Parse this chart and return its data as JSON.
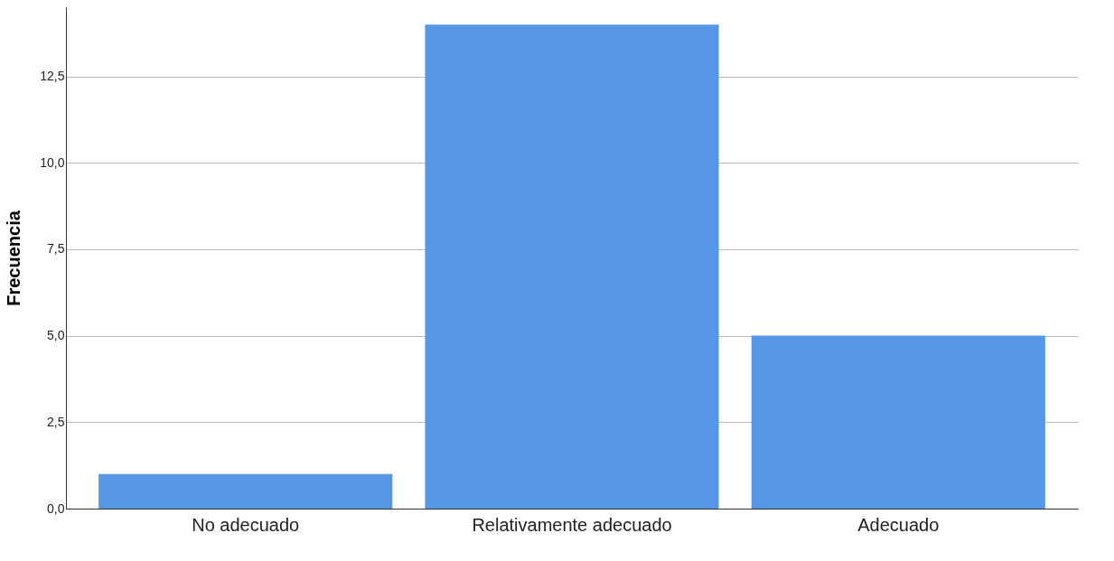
{
  "chart_data": {
    "type": "bar",
    "ylabel": "Frecuencia",
    "categories": [
      "No adecuado",
      "Relativamente adecuado",
      "Adecuado"
    ],
    "values": [
      1,
      14,
      5
    ],
    "color": "#5597e5",
    "ylim": [
      0,
      14.5
    ],
    "yticks": [
      {
        "value": 0,
        "label": "0,0"
      },
      {
        "value": 2.5,
        "label": "2,5"
      },
      {
        "value": 5,
        "label": "5,0"
      },
      {
        "value": 7.5,
        "label": "7,5"
      },
      {
        "value": 10,
        "label": "10,0"
      },
      {
        "value": 12.5,
        "label": "12,5"
      }
    ],
    "grid": "y"
  }
}
